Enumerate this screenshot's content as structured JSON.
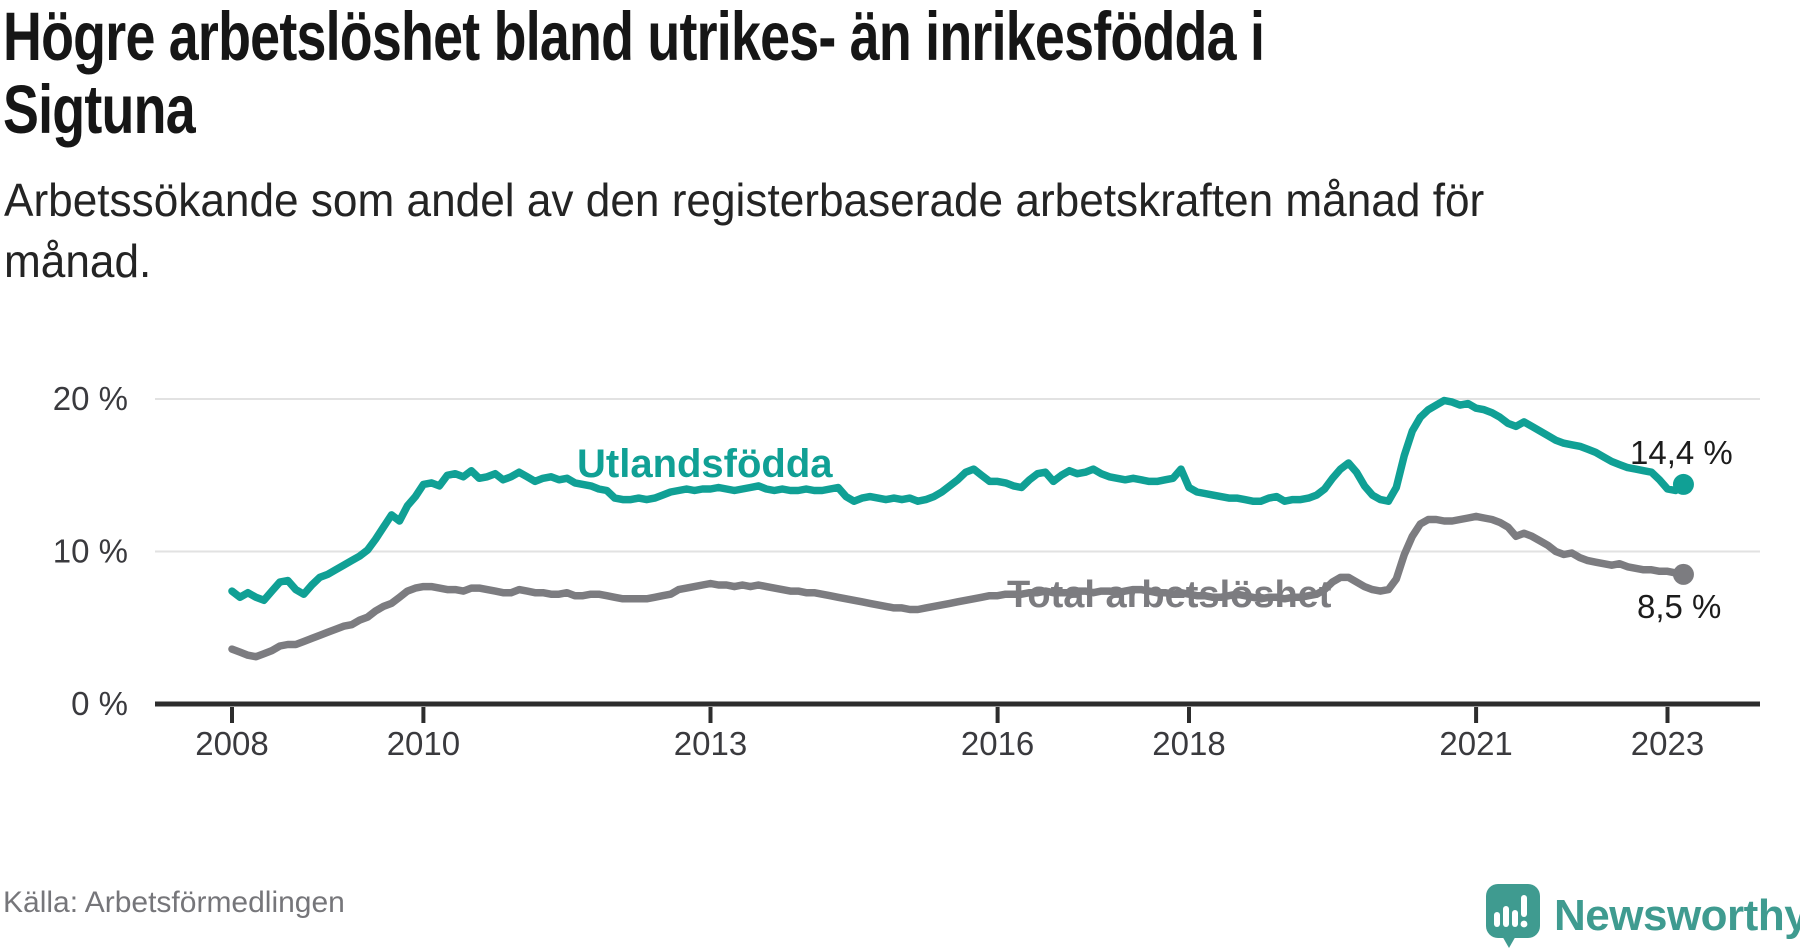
{
  "header": {
    "title_lines": [
      "Högre arbetslöshet bland utrikes- än inrikesfödda i",
      "Sigtuna"
    ],
    "subtitle_lines": [
      "Arbetssökande som andel av den registerbaserade arbetskraften månad för",
      "månad."
    ]
  },
  "footer": {
    "source": "Källa: Arbetsförmedlingen",
    "brand_name": "Newsworthy",
    "brand_icon": "bar-chart-speech-bubble-icon",
    "brand_color": "#3f9b90"
  },
  "chart_data": {
    "type": "line",
    "unit": "percent",
    "frequency": "monthly",
    "x_start": "2008-01",
    "x_end": "2023-03",
    "ylim": [
      0,
      21
    ],
    "grid": "horizontal",
    "grid_color": "#e2e2e2",
    "axis_color": "#2d2d2d",
    "y_axis": {
      "ticks": [
        {
          "label": "0 %",
          "value": 0
        },
        {
          "label": "10 %",
          "value": 10
        },
        {
          "label": "20 %",
          "value": 20
        }
      ]
    },
    "x_axis": {
      "ticks": [
        {
          "label": "2008",
          "year": 2008
        },
        {
          "label": "2010",
          "year": 2010
        },
        {
          "label": "2013",
          "year": 2013
        },
        {
          "label": "2016",
          "year": 2016
        },
        {
          "label": "2018",
          "year": 2018
        },
        {
          "label": "2021",
          "year": 2021
        },
        {
          "label": "2023",
          "year": 2023
        }
      ]
    },
    "series": [
      {
        "name": "Utlandsfödda",
        "color": "#10a095",
        "end_label": "14,4 %",
        "last_value": 14.4,
        "values": [
          7.4,
          7.0,
          7.3,
          7.0,
          6.8,
          7.4,
          8.0,
          8.1,
          7.5,
          7.2,
          7.8,
          8.3,
          8.5,
          8.8,
          9.1,
          9.4,
          9.7,
          10.1,
          10.8,
          11.6,
          12.4,
          12.0,
          13.0,
          13.6,
          14.4,
          14.5,
          14.3,
          15.0,
          15.1,
          14.9,
          15.3,
          14.8,
          14.9,
          15.1,
          14.7,
          14.9,
          15.2,
          14.9,
          14.6,
          14.8,
          14.9,
          14.7,
          14.8,
          14.5,
          14.4,
          14.3,
          14.1,
          14.0,
          13.5,
          13.4,
          13.4,
          13.5,
          13.4,
          13.5,
          13.7,
          13.9,
          14.0,
          14.1,
          14.0,
          14.1,
          14.1,
          14.2,
          14.1,
          14.0,
          14.1,
          14.2,
          14.3,
          14.1,
          14.0,
          14.1,
          14.0,
          14.0,
          14.1,
          14.0,
          14.0,
          14.1,
          14.2,
          13.6,
          13.3,
          13.5,
          13.6,
          13.5,
          13.4,
          13.5,
          13.4,
          13.5,
          13.3,
          13.4,
          13.6,
          13.9,
          14.3,
          14.7,
          15.2,
          15.4,
          15.0,
          14.6,
          14.6,
          14.5,
          14.3,
          14.2,
          14.7,
          15.1,
          15.2,
          14.6,
          15.0,
          15.3,
          15.1,
          15.2,
          15.4,
          15.1,
          14.9,
          14.8,
          14.7,
          14.8,
          14.7,
          14.6,
          14.6,
          14.7,
          14.8,
          15.4,
          14.2,
          13.9,
          13.8,
          13.7,
          13.6,
          13.5,
          13.5,
          13.4,
          13.3,
          13.3,
          13.5,
          13.6,
          13.3,
          13.4,
          13.4,
          13.5,
          13.7,
          14.1,
          14.8,
          15.4,
          15.8,
          15.2,
          14.3,
          13.7,
          13.4,
          13.3,
          14.2,
          16.3,
          17.9,
          18.8,
          19.3,
          19.6,
          19.9,
          19.8,
          19.6,
          19.7,
          19.4,
          19.3,
          19.1,
          18.8,
          18.4,
          18.2,
          18.5,
          18.2,
          17.9,
          17.6,
          17.3,
          17.1,
          17.0,
          16.9,
          16.7,
          16.5,
          16.2,
          15.9,
          15.7,
          15.5,
          15.4,
          15.3,
          15.2,
          14.7,
          14.1,
          14.0,
          14.4
        ]
      },
      {
        "name": "Total arbetslöshet",
        "color": "#7c7c80",
        "end_label": "8,5 %",
        "last_value": 8.5,
        "values": [
          3.6,
          3.4,
          3.2,
          3.1,
          3.3,
          3.5,
          3.8,
          3.9,
          3.9,
          4.1,
          4.3,
          4.5,
          4.7,
          4.9,
          5.1,
          5.2,
          5.5,
          5.7,
          6.1,
          6.4,
          6.6,
          7.0,
          7.4,
          7.6,
          7.7,
          7.7,
          7.6,
          7.5,
          7.5,
          7.4,
          7.6,
          7.6,
          7.5,
          7.4,
          7.3,
          7.3,
          7.5,
          7.4,
          7.3,
          7.3,
          7.2,
          7.2,
          7.3,
          7.1,
          7.1,
          7.2,
          7.2,
          7.1,
          7.0,
          6.9,
          6.9,
          6.9,
          6.9,
          7.0,
          7.1,
          7.2,
          7.5,
          7.6,
          7.7,
          7.8,
          7.9,
          7.8,
          7.8,
          7.7,
          7.8,
          7.7,
          7.8,
          7.7,
          7.6,
          7.5,
          7.4,
          7.4,
          7.3,
          7.3,
          7.2,
          7.1,
          7.0,
          6.9,
          6.8,
          6.7,
          6.6,
          6.5,
          6.4,
          6.3,
          6.3,
          6.2,
          6.2,
          6.3,
          6.4,
          6.5,
          6.6,
          6.7,
          6.8,
          6.9,
          7.0,
          7.1,
          7.1,
          7.2,
          7.2,
          7.2,
          7.3,
          7.3,
          7.4,
          7.3,
          7.3,
          7.3,
          7.4,
          7.4,
          7.3,
          7.4,
          7.4,
          7.3,
          7.4,
          7.5,
          7.5,
          7.4,
          7.3,
          7.3,
          7.2,
          7.3,
          7.2,
          7.1,
          7.1,
          7.0,
          7.0,
          7.1,
          7.2,
          7.1,
          7.0,
          6.9,
          7.0,
          7.0,
          6.9,
          7.0,
          7.0,
          7.1,
          7.2,
          7.5,
          8.0,
          8.3,
          8.3,
          8.0,
          7.7,
          7.5,
          7.4,
          7.5,
          8.2,
          9.8,
          11.0,
          11.8,
          12.1,
          12.1,
          12.0,
          12.0,
          12.1,
          12.2,
          12.3,
          12.2,
          12.1,
          11.9,
          11.6,
          11.0,
          11.2,
          11.0,
          10.7,
          10.4,
          10.0,
          9.8,
          9.9,
          9.6,
          9.4,
          9.3,
          9.2,
          9.1,
          9.2,
          9.0,
          8.9,
          8.8,
          8.8,
          8.7,
          8.7,
          8.6,
          8.5
        ]
      }
    ]
  }
}
